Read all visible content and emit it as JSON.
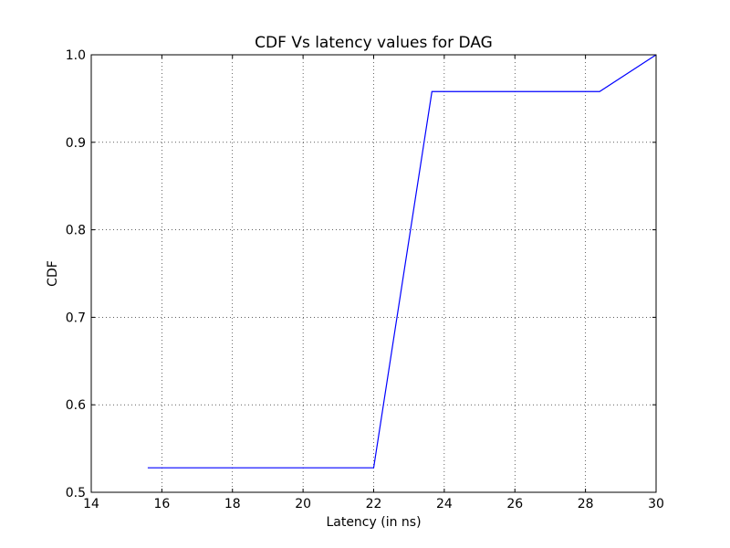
{
  "chart_data": {
    "type": "line",
    "title": "CDF Vs latency values for DAG",
    "xlabel": "Latency (in ns)",
    "ylabel": "CDF",
    "xlim": [
      14,
      30
    ],
    "ylim": [
      0.5,
      1.0
    ],
    "xticks": [
      14,
      16,
      18,
      20,
      22,
      24,
      26,
      28,
      30
    ],
    "yticks": [
      0.5,
      0.6,
      0.7,
      0.8,
      0.9,
      1.0
    ],
    "xtick_labels": [
      "14",
      "16",
      "18",
      "20",
      "22",
      "24",
      "26",
      "28",
      "30"
    ],
    "ytick_labels": [
      "0.5",
      "0.6",
      "0.7",
      "0.8",
      "0.9",
      "1.0"
    ],
    "grid": true,
    "series": [
      {
        "color": "#0000ff",
        "x": [
          15.6,
          22.0,
          23.65,
          28.4,
          30.0
        ],
        "y": [
          0.528,
          0.528,
          0.958,
          0.958,
          1.0
        ]
      }
    ]
  }
}
